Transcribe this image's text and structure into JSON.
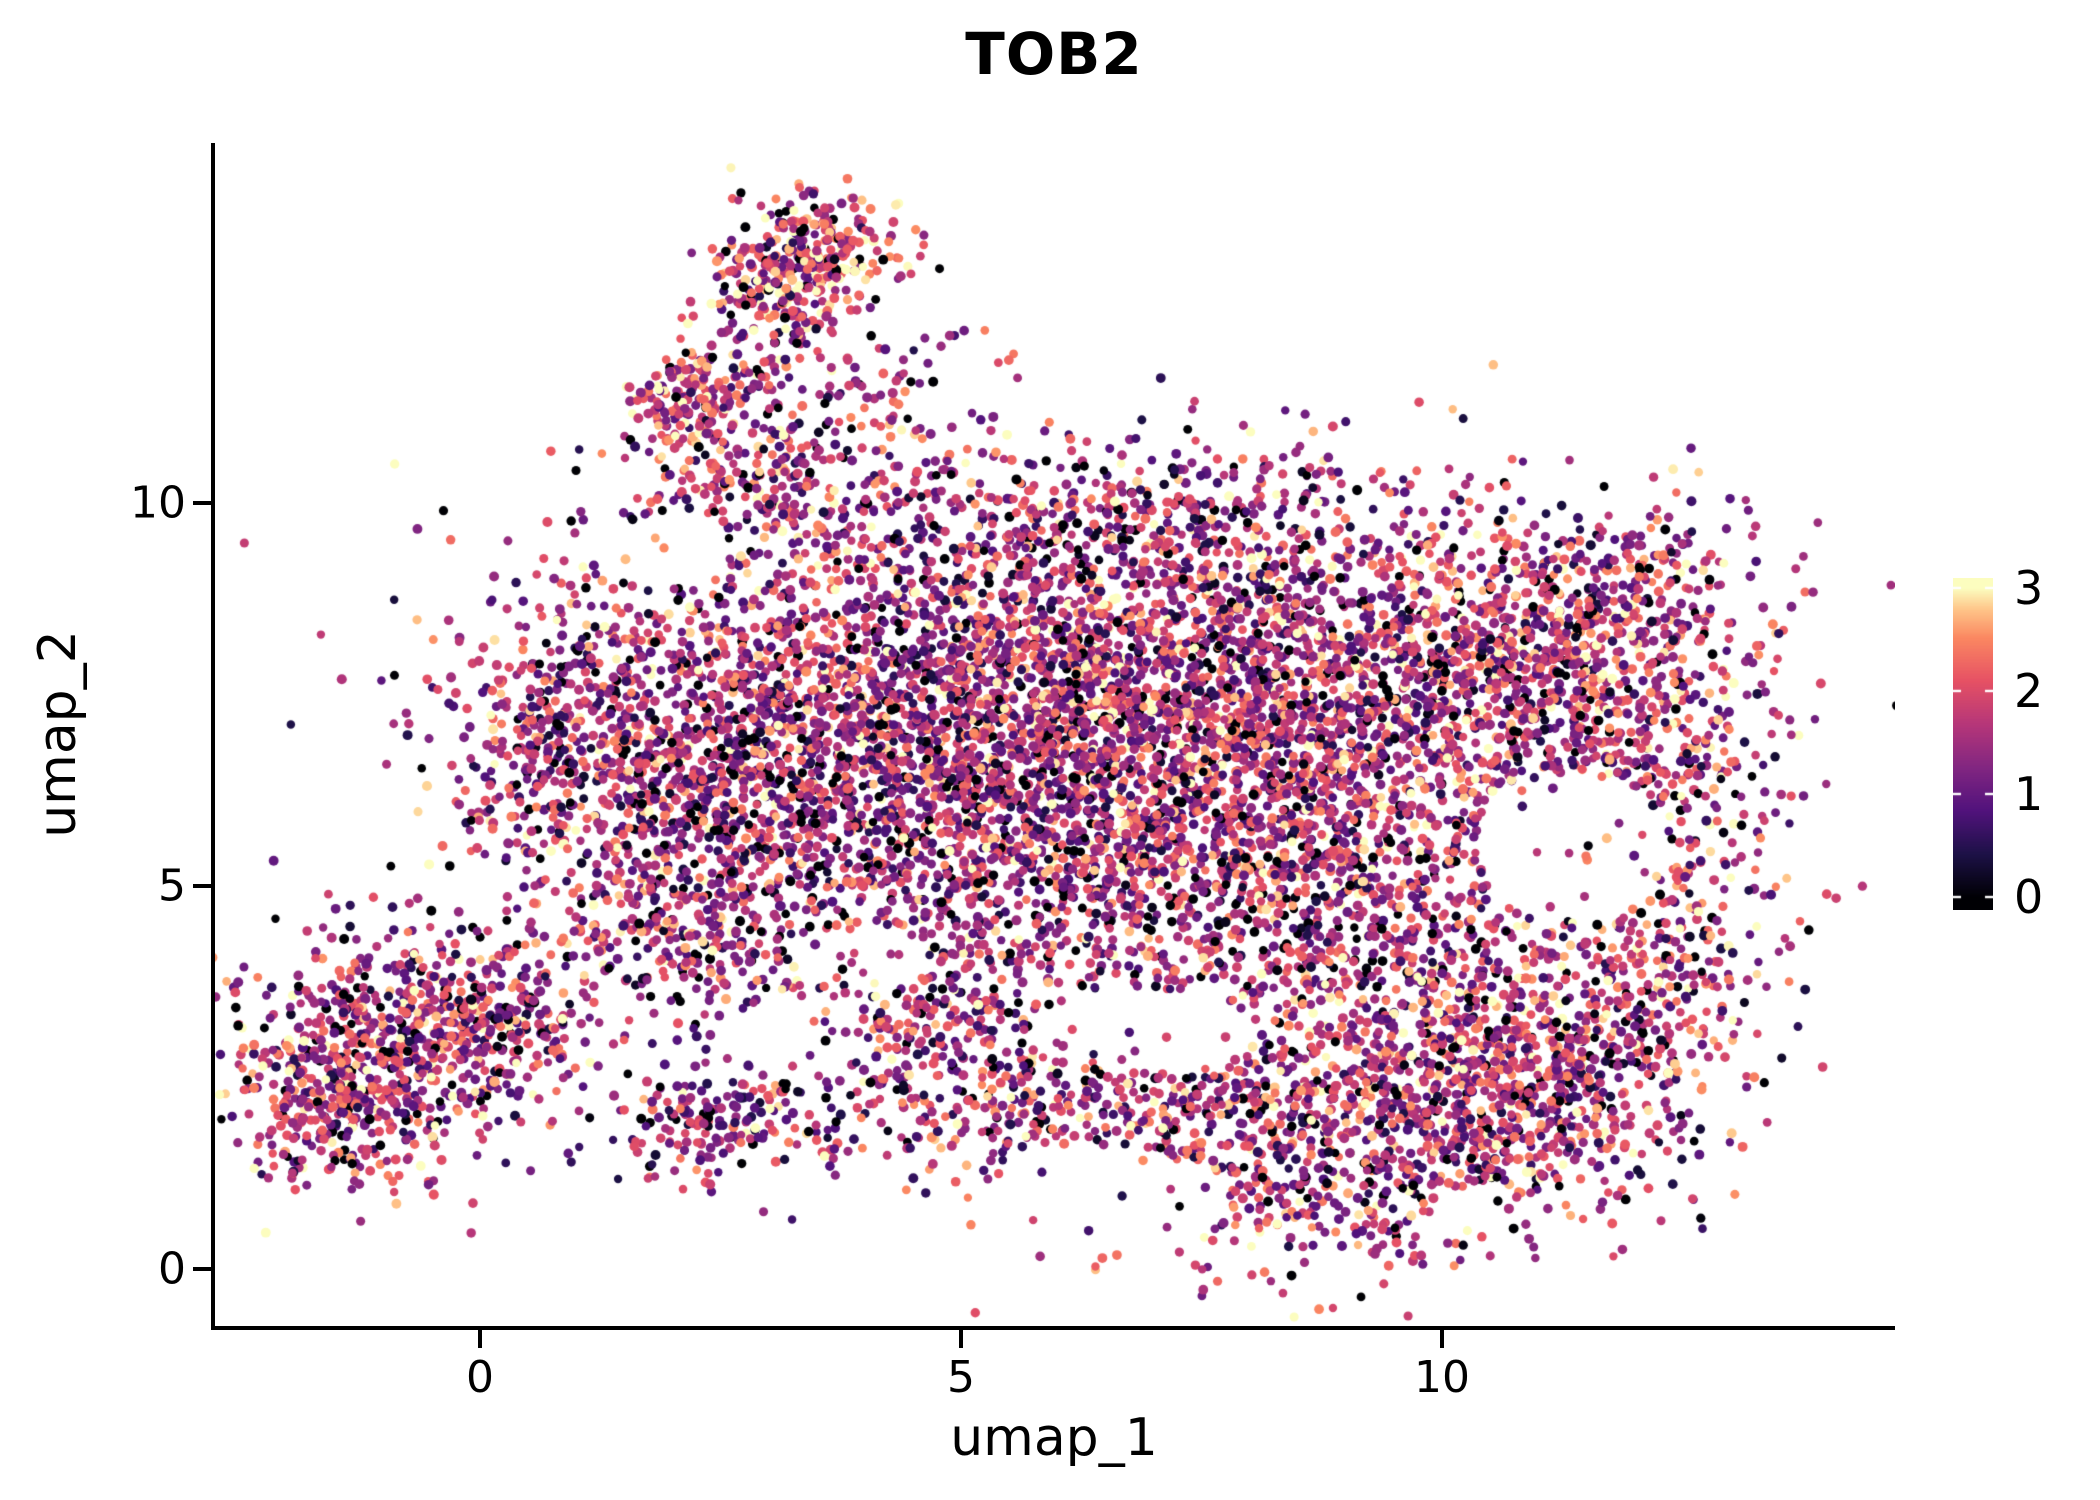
{
  "chart_data": {
    "type": "scatter",
    "title": "TOB2",
    "xlabel": "umap_1",
    "ylabel": "umap_2",
    "xlim": [
      -2.76,
      14.7
    ],
    "ylim": [
      -0.75,
      14.7
    ],
    "x_ticks": [
      0,
      5,
      10
    ],
    "y_ticks": [
      0,
      5,
      10
    ],
    "grid": false,
    "background": "#ffffff",
    "legend_position": "right",
    "colorbar": {
      "min": 0,
      "max": 3,
      "label_values": [
        3,
        2,
        1,
        0
      ],
      "colormap": "magma",
      "colormap_stops": [
        [
          0.0,
          "#000004"
        ],
        [
          0.14,
          "#1d1147"
        ],
        [
          0.28,
          "#51127c"
        ],
        [
          0.42,
          "#822681"
        ],
        [
          0.56,
          "#b63679"
        ],
        [
          0.7,
          "#e65164"
        ],
        [
          0.84,
          "#fb8861"
        ],
        [
          0.93,
          "#fec488"
        ],
        [
          1.0,
          "#fcfdbf"
        ]
      ]
    },
    "point_style": {
      "radius_px": 4.6,
      "seed": 42,
      "zero_fraction": 0.06,
      "value_mean": 1.55,
      "value_sd": 0.8
    },
    "clusters": [
      {
        "cx": 4.3,
        "cy": 7.6,
        "sx": 2.0,
        "sy": 1.2,
        "n": 1600,
        "vb": 0
      },
      {
        "cx": 7.8,
        "cy": 7.8,
        "sx": 1.9,
        "sy": 1.2,
        "n": 1800,
        "vb": 0.1
      },
      {
        "cx": 5.3,
        "cy": 5.6,
        "sx": 2.0,
        "sy": 1.2,
        "n": 1400,
        "vb": -0.1
      },
      {
        "cx": 8.8,
        "cy": 5.2,
        "sx": 1.7,
        "sy": 1.3,
        "n": 1200,
        "vb": 0
      },
      {
        "cx": 10.8,
        "cy": 7.6,
        "sx": 1.1,
        "sy": 1.0,
        "n": 600,
        "vb": 0.15
      },
      {
        "cx": 12.3,
        "cy": 6.0,
        "sx": 0.7,
        "sy": 1.6,
        "n": 400,
        "vb": 0.1
      },
      {
        "cx": 8.6,
        "cy": 1.7,
        "sx": 1.5,
        "sy": 0.9,
        "n": 850,
        "vb": 0.15
      },
      {
        "cx": 5.6,
        "cy": 2.3,
        "sx": 1.4,
        "sy": 0.6,
        "n": 400,
        "vb": 0
      },
      {
        "cx": 10.0,
        "cy": 3.0,
        "sx": 1.0,
        "sy": 0.9,
        "n": 450,
        "vb": 0.1
      },
      {
        "cx": 11.6,
        "cy": 8.8,
        "sx": 0.9,
        "sy": 0.6,
        "n": 250,
        "vb": 0.1
      },
      {
        "cx": 6.5,
        "cy": 9.7,
        "sx": 1.5,
        "sy": 0.55,
        "n": 350,
        "vb": 0
      },
      {
        "cx": 0.8,
        "cy": 6.8,
        "sx": 0.6,
        "sy": 1.0,
        "n": 350,
        "vb": 0
      },
      {
        "cx": 2.5,
        "cy": 6.2,
        "sx": 1.0,
        "sy": 1.2,
        "n": 600,
        "vb": -0.1
      },
      {
        "cx": -0.9,
        "cy": 2.9,
        "sx": 0.85,
        "sy": 0.8,
        "n": 650,
        "vb": 0
      },
      {
        "cx": -1.5,
        "cy": 2.2,
        "sx": 0.5,
        "sy": 0.5,
        "n": 200,
        "vb": 0.1
      },
      {
        "cx": 0.4,
        "cy": 3.3,
        "sx": 0.5,
        "sy": 0.45,
        "n": 140,
        "vb": 0
      },
      {
        "x1": 1.9,
        "y1": 10.9,
        "x2": 3.3,
        "y2": 13.2,
        "spread": 0.32,
        "n": 420,
        "vb": 0.3
      },
      {
        "cx": 3.6,
        "cy": 13.35,
        "sx": 0.45,
        "sy": 0.35,
        "n": 190,
        "vb": 0.55
      },
      {
        "cx": 2.9,
        "cy": 10.1,
        "sx": 0.6,
        "sy": 0.55,
        "n": 200,
        "vb": 0.1
      },
      {
        "cx": 3.8,
        "cy": 11.3,
        "sx": 0.7,
        "sy": 0.8,
        "n": 150,
        "vb": 0
      },
      {
        "cx": 1.9,
        "cy": 4.3,
        "sx": 0.7,
        "sy": 0.5,
        "n": 170,
        "vb": 0
      },
      {
        "cx": 2.4,
        "cy": 1.9,
        "sx": 0.5,
        "sy": 0.35,
        "n": 160,
        "vb": -0.2
      },
      {
        "cx": 4.3,
        "cy": 3.4,
        "sx": 0.9,
        "sy": 0.6,
        "n": 200,
        "vb": 0
      },
      {
        "cx": 10.9,
        "cy": 2.2,
        "sx": 0.8,
        "sy": 0.7,
        "n": 300,
        "vb": 0.1
      },
      {
        "cx": 12.0,
        "cy": 3.5,
        "sx": 0.6,
        "sy": 0.7,
        "n": 200,
        "vb": 0.15
      }
    ],
    "holes": [
      {
        "cx": 11.35,
        "cy": 5.5,
        "rx": 1.0,
        "ry": 0.95,
        "p": 0.93
      },
      {
        "cx": 6.9,
        "cy": 3.1,
        "rx": 1.2,
        "ry": 0.55,
        "p": 0.9
      },
      {
        "cx": 3.3,
        "cy": 3.05,
        "rx": 0.75,
        "ry": 0.5,
        "p": 0.85
      },
      {
        "cx": 4.0,
        "cy": 4.05,
        "rx": 0.7,
        "ry": 0.45,
        "p": 0.8
      },
      {
        "cx": 2.0,
        "cy": 9.4,
        "rx": 0.6,
        "ry": 0.5,
        "p": 0.8
      },
      {
        "cx": 6.5,
        "cy": 0.9,
        "rx": 1.2,
        "ry": 0.7,
        "p": 0.85
      },
      {
        "cx": 2.6,
        "cy": 12.2,
        "rx": 0.45,
        "ry": 0.4,
        "p": 0.75
      }
    ]
  }
}
